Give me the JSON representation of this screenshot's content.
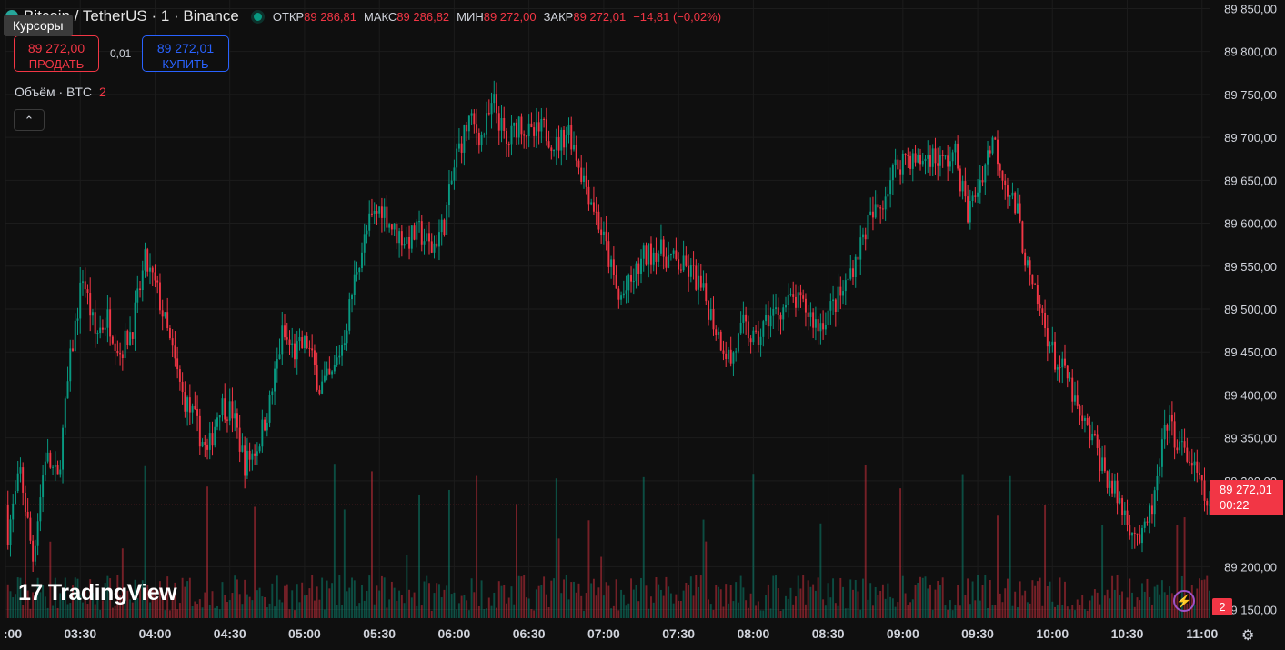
{
  "header": {
    "symbol": "Bitcoin / TetherUS · 1 · Binance",
    "open_label": "ОТКР",
    "open_value": "89 286,81",
    "high_label": "МАКС",
    "high_value": "89 286,82",
    "low_label": "МИН",
    "low_value": "89 272,00",
    "close_label": "ЗАКР",
    "close_value": "89 272,01",
    "change": "−14,81 (−0,02%)"
  },
  "tooltip": "Курсоры",
  "trade": {
    "sell_price": "89 272,00",
    "sell_label": "ПРОДАТЬ",
    "spread": "0,01",
    "buy_price": "89 272,01",
    "buy_label": "КУПИТЬ"
  },
  "volume_legend": {
    "label": "Объём · BTC",
    "value": "2"
  },
  "collapse_icon": "chevron-up-icon",
  "logo": "TradingView",
  "last_price": {
    "value": "89 272,01",
    "countdown": "00:22"
  },
  "badge_count": "2",
  "icons": {
    "alert": "lightning-icon",
    "settings": "settings-icon"
  },
  "colors": {
    "up": "#089981",
    "down": "#f23645",
    "background": "#0f0f0f"
  },
  "chart_data": {
    "type": "candlestick",
    "y_ticks": [
      "89 850,00",
      "89 800,00",
      "89 750,00",
      "89 700,00",
      "89 650,00",
      "89 600,00",
      "89 550,00",
      "89 500,00",
      "89 450,00",
      "89 400,00",
      "89 350,00",
      "89 300,00",
      "89 200,00",
      "89 150,00"
    ],
    "y_tick_values": [
      89850,
      89800,
      89750,
      89700,
      89650,
      89600,
      89550,
      89500,
      89450,
      89400,
      89350,
      89300,
      89200,
      89150
    ],
    "x_ticks": [
      ":00",
      "03:30",
      "04:00",
      "04:30",
      "05:00",
      "05:30",
      "06:00",
      "06:30",
      "07:00",
      "07:30",
      "08:00",
      "08:30",
      "09:00",
      "09:30",
      "10:00",
      "10:30",
      "11:00"
    ],
    "x_tick_minutes": [
      180,
      210,
      240,
      270,
      300,
      330,
      360,
      390,
      420,
      450,
      480,
      510,
      540,
      570,
      600,
      630,
      660
    ],
    "ylim": [
      89140,
      89860
    ],
    "xlim": [
      180,
      663
    ],
    "last_close": 89272.01,
    "path_anchors": [
      [
        181,
        89240
      ],
      [
        186,
        89310
      ],
      [
        191,
        89210
      ],
      [
        196,
        89330
      ],
      [
        201,
        89300
      ],
      [
        206,
        89440
      ],
      [
        211,
        89540
      ],
      [
        216,
        89470
      ],
      [
        221,
        89490
      ],
      [
        226,
        89450
      ],
      [
        231,
        89480
      ],
      [
        236,
        89555
      ],
      [
        241,
        89520
      ],
      [
        246,
        89460
      ],
      [
        251,
        89400
      ],
      [
        256,
        89370
      ],
      [
        261,
        89330
      ],
      [
        266,
        89390
      ],
      [
        271,
        89380
      ],
      [
        276,
        89320
      ],
      [
        281,
        89340
      ],
      [
        286,
        89390
      ],
      [
        291,
        89470
      ],
      [
        296,
        89450
      ],
      [
        301,
        89460
      ],
      [
        306,
        89410
      ],
      [
        311,
        89420
      ],
      [
        316,
        89470
      ],
      [
        321,
        89550
      ],
      [
        326,
        89600
      ],
      [
        331,
        89620
      ],
      [
        336,
        89590
      ],
      [
        341,
        89580
      ],
      [
        346,
        89590
      ],
      [
        351,
        89570
      ],
      [
        356,
        89600
      ],
      [
        361,
        89680
      ],
      [
        366,
        89720
      ],
      [
        371,
        89700
      ],
      [
        376,
        89740
      ],
      [
        381,
        89690
      ],
      [
        386,
        89720
      ],
      [
        391,
        89700
      ],
      [
        396,
        89710
      ],
      [
        401,
        89690
      ],
      [
        406,
        89710
      ],
      [
        411,
        89660
      ],
      [
        416,
        89620
      ],
      [
        421,
        89570
      ],
      [
        426,
        89510
      ],
      [
        431,
        89530
      ],
      [
        436,
        89560
      ],
      [
        441,
        89570
      ],
      [
        446,
        89560
      ],
      [
        451,
        89550
      ],
      [
        456,
        89540
      ],
      [
        461,
        89510
      ],
      [
        466,
        89470
      ],
      [
        471,
        89440
      ],
      [
        476,
        89480
      ],
      [
        481,
        89460
      ],
      [
        486,
        89490
      ],
      [
        491,
        89500
      ],
      [
        496,
        89510
      ],
      [
        501,
        89500
      ],
      [
        506,
        89480
      ],
      [
        511,
        89500
      ],
      [
        516,
        89520
      ],
      [
        521,
        89560
      ],
      [
        526,
        89600
      ],
      [
        531,
        89620
      ],
      [
        536,
        89660
      ],
      [
        541,
        89680
      ],
      [
        546,
        89670
      ],
      [
        551,
        89680
      ],
      [
        556,
        89670
      ],
      [
        561,
        89680
      ],
      [
        566,
        89610
      ],
      [
        571,
        89650
      ],
      [
        576,
        89700
      ],
      [
        581,
        89650
      ],
      [
        586,
        89610
      ],
      [
        591,
        89530
      ],
      [
        596,
        89490
      ],
      [
        601,
        89440
      ],
      [
        606,
        89420
      ],
      [
        611,
        89370
      ],
      [
        616,
        89350
      ],
      [
        621,
        89310
      ],
      [
        626,
        89280
      ],
      [
        631,
        89250
      ],
      [
        636,
        89230
      ],
      [
        641,
        89280
      ],
      [
        646,
        89370
      ],
      [
        651,
        89340
      ],
      [
        656,
        89320
      ],
      [
        661,
        89280
      ],
      [
        663,
        89272
      ]
    ]
  }
}
